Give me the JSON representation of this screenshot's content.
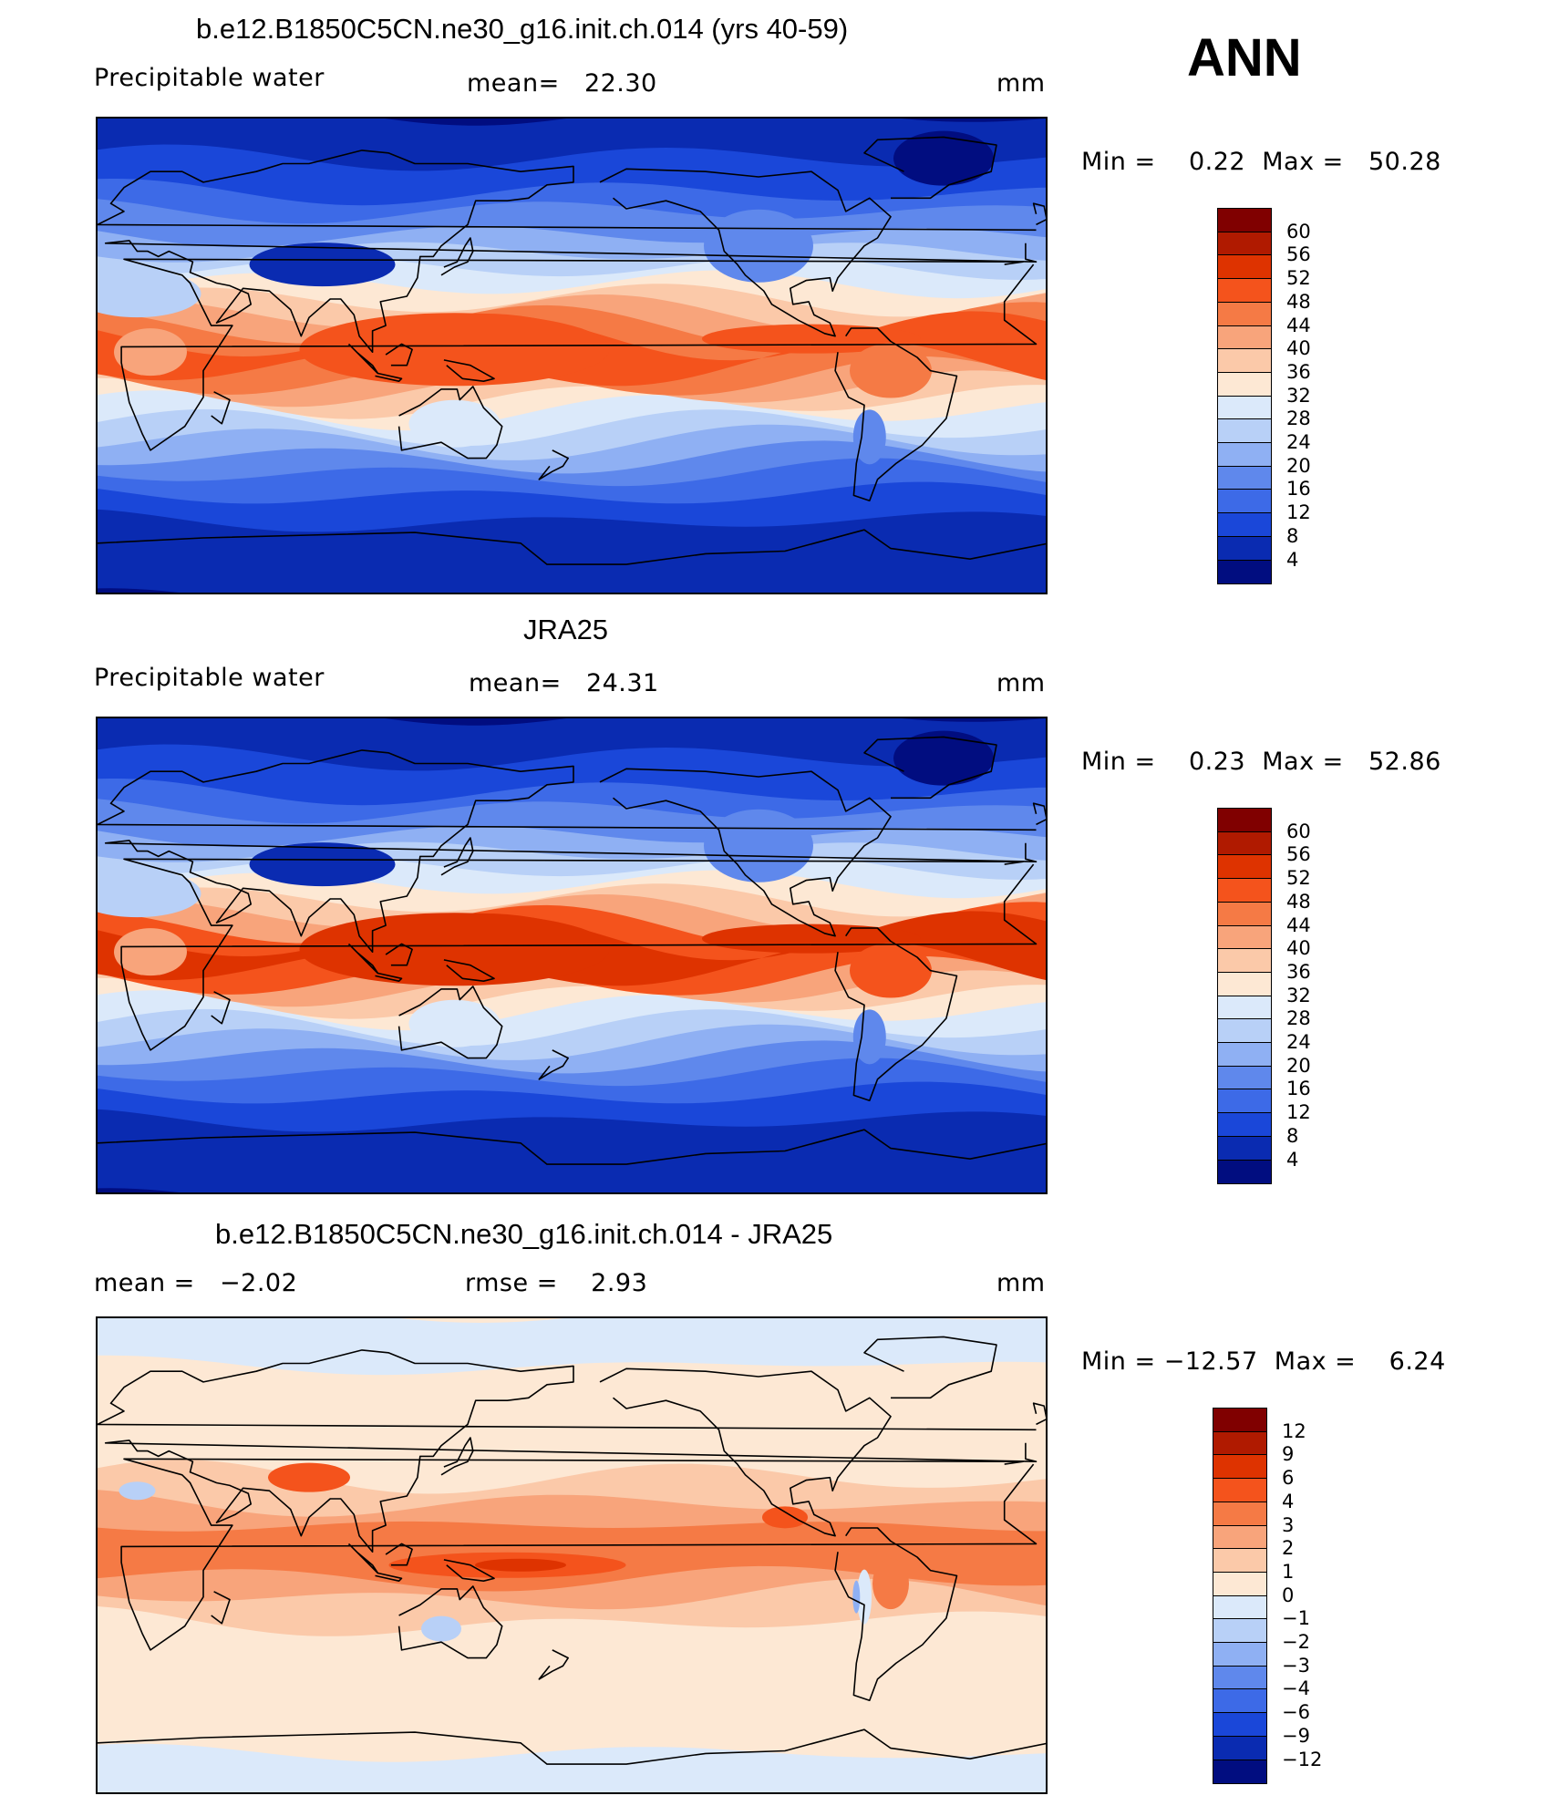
{
  "season": "ANN",
  "panels": [
    {
      "title": "b.e12.B1850C5CN.ne30_g16.init.ch.014 (yrs 40-59)",
      "left": "Precipitable water",
      "center": "mean=   22.30",
      "units": "mm",
      "minmax": "Min =    0.22  Max =   50.28",
      "kind": "model"
    },
    {
      "title": "JRA25",
      "left": "Precipitable water",
      "center": "mean=   24.31",
      "units": "mm",
      "minmax": "Min =    0.23  Max =   52.86",
      "kind": "obs"
    },
    {
      "title": "b.e12.B1850C5CN.ne30_g16.init.ch.014 - JRA25",
      "left": "mean =   −2.02",
      "center": "rmse =    2.93",
      "units": "mm",
      "minmax": "Min = −12.57  Max =    6.24",
      "kind": "diff"
    }
  ],
  "colorbars": {
    "abs": {
      "labels": [
        "60",
        "56",
        "52",
        "48",
        "44",
        "40",
        "36",
        "32",
        "28",
        "24",
        "20",
        "16",
        "12",
        "8",
        "4"
      ],
      "colors": [
        "#800000",
        "#b01a00",
        "#de3300",
        "#f4531c",
        "#f57a45",
        "#f8a47b",
        "#fbc9a9",
        "#fde8d4",
        "#dbe9fa",
        "#b8d0f7",
        "#8fb0f3",
        "#5f88ec",
        "#3d6ae7",
        "#1a47d9",
        "#0a2bb1",
        "#010d80"
      ]
    },
    "diff": {
      "labels": [
        "12",
        "9",
        "6",
        "4",
        "3",
        "2",
        "1",
        "0",
        "−1",
        "−2",
        "−3",
        "−4",
        "−6",
        "−9",
        "−12"
      ],
      "colors": [
        "#800000",
        "#b01a00",
        "#de3300",
        "#f4531c",
        "#f57a45",
        "#f8a47b",
        "#fbc9a9",
        "#fde8d4",
        "#dbe9fa",
        "#b8d0f7",
        "#8fb0f3",
        "#5f88ec",
        "#3d6ae7",
        "#1a47d9",
        "#0a2bb1",
        "#010d80"
      ]
    }
  },
  "chart_data": {
    "type": "heatmap",
    "description": "Global annual-mean precipitable water maps (model, reanalysis, difference) on a cylindrical equidistant projection",
    "x_range": [
      0,
      360
    ],
    "y_range": [
      -90,
      90
    ],
    "contour_levels_abs": [
      4,
      8,
      12,
      16,
      20,
      24,
      28,
      32,
      36,
      40,
      44,
      48,
      52,
      56,
      60
    ],
    "contour_levels_diff": [
      -12,
      -9,
      -6,
      -4,
      -3,
      -2,
      -1,
      0,
      1,
      2,
      3,
      4,
      6,
      9,
      12
    ],
    "series": [
      {
        "name": "b.e12.B1850C5CN.ne30_g16.init.ch.014 (yrs 40-59)",
        "mean": 22.3,
        "min": 0.22,
        "max": 50.28,
        "units": "mm"
      },
      {
        "name": "JRA25",
        "mean": 24.31,
        "min": 0.23,
        "max": 52.86,
        "units": "mm"
      },
      {
        "name": "b.e12.B1850C5CN.ne30_g16.init.ch.014 - JRA25",
        "mean": -2.02,
        "rmse": 2.93,
        "min": -12.57,
        "max": 6.24,
        "units": "mm"
      }
    ]
  }
}
